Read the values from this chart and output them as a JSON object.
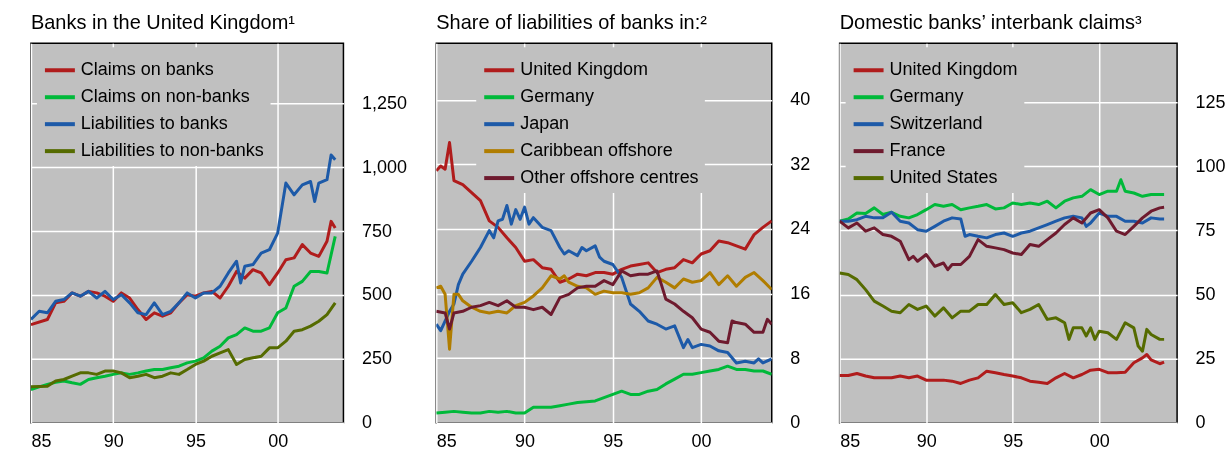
{
  "chart_data": [
    {
      "type": "line",
      "title": "Banks in the United Kingdom¹",
      "xlim": [
        1985,
        2004
      ],
      "ylim": [
        0,
        1485
      ],
      "xticks": [
        {
          "value": 1985,
          "label": "85"
        },
        {
          "value": 1990,
          "label": "90"
        },
        {
          "value": 1995,
          "label": "95"
        },
        {
          "value": 2000,
          "label": "00"
        }
      ],
      "yticks": [
        0,
        250,
        500,
        750,
        {
          "value": 1000,
          "label": "1,000"
        },
        {
          "value": 1250,
          "label": "1,250"
        }
      ],
      "grid": true,
      "legend": "top left",
      "series": [
        {
          "name": "Claims on banks",
          "color": "#b01c1c",
          "x": [
            1985,
            1986,
            1986.5,
            1987,
            1987.5,
            1988,
            1988.5,
            1989,
            1989.5,
            1990,
            1990.5,
            1991,
            1991.5,
            1992,
            1992.5,
            1993,
            1993.5,
            1994,
            1994.5,
            1995,
            1995.5,
            1996,
            1996.5,
            1997,
            1997.5,
            1998,
            1998.5,
            1999,
            1999.5,
            2000,
            2000.5,
            2001,
            2001.5,
            2002,
            2002.5,
            2003,
            2003.25,
            2003.5
          ],
          "values": [
            384,
            404,
            469,
            475,
            508,
            495,
            514,
            508,
            495,
            475,
            508,
            488,
            443,
            404,
            430,
            417,
            430,
            469,
            501,
            495,
            508,
            514,
            488,
            534,
            592,
            566,
            599,
            586,
            540,
            586,
            638,
            645,
            697,
            664,
            651,
            710,
            788,
            762
          ]
        },
        {
          "name": "Claims on non-banks",
          "color": "#00b93a",
          "x": [
            1985,
            1985.5,
            1986,
            1986.5,
            1987,
            1987.5,
            1988,
            1988.5,
            1989,
            1989.5,
            1990,
            1990.5,
            1991,
            1991.5,
            1992,
            1992.5,
            1993,
            1993.5,
            1994,
            1994.5,
            1995,
            1995.5,
            1996,
            1996.5,
            1997,
            1997.5,
            1998,
            1998.5,
            1999,
            1999.5,
            2000,
            2000.5,
            2001,
            2001.5,
            2002,
            2002.5,
            2003,
            2003.5
          ],
          "values": [
            130,
            140,
            150,
            158,
            163,
            156,
            150,
            169,
            176,
            182,
            189,
            195,
            189,
            195,
            202,
            208,
            208,
            215,
            221,
            234,
            241,
            254,
            280,
            299,
            332,
            345,
            371,
            358,
            358,
            371,
            430,
            449,
            534,
            553,
            592,
            592,
            586,
            729
          ]
        },
        {
          "name": "Liabilities to banks",
          "color": "#1d5aa8",
          "x": [
            1985,
            1985.5,
            1986,
            1986.5,
            1987,
            1987.5,
            1988,
            1988.5,
            1989,
            1989.5,
            1990,
            1990.5,
            1991,
            1991.5,
            1992,
            1992.5,
            1993,
            1993.5,
            1994,
            1994.5,
            1995,
            1995.5,
            1996,
            1996.5,
            1997,
            1997.5,
            1997.75,
            1998,
            1998.5,
            1999,
            1999.5,
            2000,
            2000.5,
            2001,
            2001.5,
            2002,
            2002.25,
            2002.5,
            2003,
            2003.25,
            2003.5
          ],
          "values": [
            404,
            436,
            430,
            475,
            482,
            508,
            495,
            514,
            488,
            514,
            482,
            501,
            469,
            430,
            423,
            469,
            423,
            436,
            469,
            508,
            488,
            508,
            508,
            534,
            586,
            632,
            547,
            612,
            619,
            664,
            677,
            742,
            938,
            892,
            931,
            944,
            866,
            938,
            951,
            1048,
            1029
          ]
        },
        {
          "name": "Liabilities to non-banks",
          "color": "#556b00",
          "x": [
            1985,
            1985.5,
            1986,
            1986.5,
            1987,
            1987.5,
            1988,
            1988.5,
            1989,
            1989.5,
            1990,
            1990.5,
            1991,
            1991.5,
            1992,
            1992.5,
            1993,
            1993.5,
            1994,
            1994.5,
            1995,
            1995.5,
            1996,
            1996.5,
            1997,
            1997.5,
            1998,
            1998.5,
            1999,
            1999.5,
            2000,
            2000.5,
            2001,
            2001.5,
            2002,
            2002.5,
            2003,
            2003.5
          ],
          "values": [
            141,
            142,
            143,
            163,
            169,
            182,
            195,
            195,
            189,
            202,
            202,
            195,
            176,
            182,
            189,
            176,
            182,
            195,
            189,
            208,
            228,
            241,
            260,
            273,
            286,
            228,
            247,
            254,
            260,
            293,
            293,
            319,
            358,
            364,
            378,
            397,
            423,
            469
          ]
        }
      ]
    },
    {
      "type": "line",
      "title": "Share of liabilities of banks in:²",
      "xlim": [
        1985,
        2004
      ],
      "ylim": [
        0,
        47
      ],
      "xticks": [
        {
          "value": 1985,
          "label": "85"
        },
        {
          "value": 1990,
          "label": "90"
        },
        {
          "value": 1995,
          "label": "95"
        },
        {
          "value": 2000,
          "label": "00"
        }
      ],
      "yticks": [
        0,
        8,
        16,
        24,
        32,
        40
      ],
      "grid": true,
      "legend": "top left",
      "series": [
        {
          "name": "United Kingdom",
          "color": "#b01c1c",
          "x": [
            1985,
            1985.25,
            1985.5,
            1985.75,
            1986,
            1986.5,
            1987,
            1987.5,
            1988,
            1988.5,
            1989,
            1989.5,
            1990,
            1990.5,
            1991,
            1991.5,
            1992,
            1992.5,
            1993,
            1993.5,
            1994,
            1994.5,
            1995,
            1995.5,
            1996,
            1996.5,
            1997,
            1997.5,
            1998,
            1998.5,
            1999,
            1999.5,
            2000,
            2000.5,
            2001,
            2001.5,
            2002,
            2002.5,
            2003,
            2003.5,
            2004
          ],
          "values": [
            31.2,
            31.8,
            31.4,
            34.7,
            30.0,
            29.5,
            28.5,
            27.5,
            25.0,
            24.2,
            22.9,
            21.7,
            20.0,
            20.2,
            19.2,
            19.0,
            17.4,
            17.8,
            18.4,
            18.2,
            18.6,
            18.6,
            18.4,
            19.0,
            19.4,
            19.6,
            19.8,
            18.6,
            19.0,
            19.2,
            20.2,
            19.8,
            20.9,
            21.3,
            22.5,
            22.3,
            21.9,
            21.5,
            23.3,
            24.2,
            25.0
          ]
        },
        {
          "name": "Germany",
          "color": "#00b93a",
          "x": [
            1985,
            1985.5,
            1986,
            1986.5,
            1987,
            1987.5,
            1988,
            1988.5,
            1989,
            1989.5,
            1990,
            1990.5,
            1991,
            1991.5,
            1992,
            1992.5,
            1993,
            1993.5,
            1994,
            1994.5,
            1995,
            1995.5,
            1996,
            1996.5,
            1997,
            1997.5,
            1998,
            1998.5,
            1999,
            1999.5,
            2000,
            2000.5,
            2001,
            2001.5,
            2002,
            2002.5,
            2003,
            2003.5,
            2004
          ],
          "values": [
            1.2,
            1.3,
            1.4,
            1.3,
            1.2,
            1.2,
            1.4,
            1.3,
            1.4,
            1.2,
            1.2,
            1.9,
            1.9,
            1.9,
            2.1,
            2.3,
            2.5,
            2.6,
            2.7,
            3.1,
            3.5,
            3.9,
            3.5,
            3.5,
            3.9,
            4.1,
            4.8,
            5.4,
            6.0,
            6.0,
            6.2,
            6.4,
            6.6,
            7.0,
            6.6,
            6.6,
            6.4,
            6.4,
            6.0
          ]
        },
        {
          "name": "Japan",
          "color": "#1d5aa8",
          "x": [
            1985,
            1985.25,
            1985.75,
            1986,
            1986.25,
            1986.5,
            1987,
            1987.5,
            1988,
            1988.25,
            1988.5,
            1988.75,
            1989,
            1989.25,
            1989.5,
            1989.75,
            1990,
            1990.25,
            1990.5,
            1991,
            1991.5,
            1992,
            1992.25,
            1992.5,
            1993,
            1993.25,
            1993.5,
            1994,
            1994.25,
            1994.5,
            1995,
            1995.5,
            1996,
            1996.5,
            1997,
            1997.5,
            1998,
            1998.5,
            1999,
            1999.25,
            1999.5,
            2000,
            2000.5,
            2001,
            2001.5,
            2002,
            2002.5,
            2003,
            2003.25,
            2003.5,
            2004
          ],
          "values": [
            12.2,
            11.4,
            13.8,
            14.7,
            17.1,
            18.4,
            20.0,
            21.7,
            23.8,
            22.9,
            25.0,
            25.2,
            26.9,
            24.6,
            26.4,
            25.2,
            26.7,
            24.6,
            25.4,
            24.2,
            23.8,
            21.7,
            20.9,
            21.3,
            20.7,
            21.7,
            21.3,
            21.9,
            20.5,
            20.0,
            19.6,
            18.0,
            14.7,
            13.8,
            12.6,
            12.2,
            11.6,
            12.0,
            9.3,
            10.3,
            9.3,
            9.7,
            9.5,
            8.9,
            8.7,
            7.4,
            7.6,
            7.4,
            7.9,
            7.4,
            7.9
          ]
        },
        {
          "name": "Caribbean offshore",
          "color": "#b07d00",
          "x": [
            1985,
            1985.25,
            1985.5,
            1985.75,
            1986,
            1986.25,
            1986.5,
            1987,
            1987.5,
            1988,
            1988.5,
            1989,
            1989.5,
            1990,
            1990.5,
            1991,
            1991.5,
            1992,
            1992.25,
            1992.5,
            1993,
            1993.5,
            1994,
            1994.5,
            1995,
            1995.5,
            1996,
            1996.5,
            1997,
            1997.5,
            1998,
            1998.5,
            1999,
            1999.5,
            2000,
            2000.5,
            2001,
            2001.5,
            2002,
            2002.5,
            2003,
            2003.5,
            2004
          ],
          "values": [
            16.7,
            16.9,
            15.9,
            9.1,
            15.9,
            15.9,
            15.1,
            14.3,
            13.8,
            13.6,
            13.8,
            13.6,
            14.5,
            14.9,
            15.7,
            16.7,
            18.2,
            17.8,
            18.2,
            17.4,
            16.9,
            16.7,
            15.9,
            16.3,
            16.1,
            16.1,
            15.9,
            16.1,
            16.7,
            18.0,
            17.4,
            16.7,
            17.8,
            17.4,
            17.6,
            18.6,
            17.1,
            18.2,
            16.9,
            18.0,
            18.6,
            17.6,
            16.5
          ]
        },
        {
          "name": "Other offshore centres",
          "color": "#6e1a2e",
          "x": [
            1985,
            1985.5,
            1985.75,
            1986,
            1986.5,
            1987,
            1987.5,
            1988,
            1988.5,
            1989,
            1989.5,
            1990,
            1990.5,
            1991,
            1991.5,
            1992,
            1992.5,
            1993,
            1993.5,
            1994,
            1994.5,
            1995,
            1995.5,
            1996,
            1996.5,
            1997,
            1997.5,
            1997.75,
            1998,
            1998.5,
            1999,
            1999.5,
            2000,
            2000.5,
            2001,
            2001.5,
            2001.75,
            2002,
            2002.5,
            2003,
            2003.5,
            2003.75,
            2004
          ],
          "values": [
            13.8,
            13.6,
            11.6,
            13.6,
            13.8,
            14.3,
            14.5,
            14.9,
            14.5,
            15.1,
            14.3,
            14.3,
            14.0,
            14.3,
            13.4,
            15.5,
            15.9,
            16.7,
            16.9,
            16.9,
            17.6,
            17.1,
            18.8,
            18.2,
            18.4,
            18.4,
            18.8,
            17.1,
            15.3,
            14.7,
            13.8,
            13.0,
            11.6,
            11.2,
            10.1,
            9.9,
            12.6,
            12.4,
            12.2,
            11.2,
            11.2,
            12.8,
            12.2
          ]
        }
      ]
    },
    {
      "type": "line",
      "title": "Domestic banks’ interbank claims³",
      "xlim": [
        1985,
        2004.5
      ],
      "ylim": [
        0,
        148
      ],
      "xticks": [
        {
          "value": 1985,
          "label": "85"
        },
        {
          "value": 1990,
          "label": "90"
        },
        {
          "value": 1995,
          "label": "95"
        },
        {
          "value": 2000,
          "label": "00"
        }
      ],
      "yticks": [
        0,
        25,
        50,
        75,
        100,
        125
      ],
      "grid": true,
      "legend": "top left",
      "series": [
        {
          "name": "United Kingdom",
          "color": "#b01c1c",
          "x": [
            1985,
            1985.5,
            1986,
            1986.5,
            1987,
            1987.5,
            1988,
            1988.5,
            1989,
            1989.5,
            1990,
            1990.5,
            1991,
            1991.5,
            1992,
            1992.5,
            1993,
            1993.5,
            1994,
            1994.5,
            1995,
            1995.5,
            1996,
            1996.5,
            1997,
            1997.5,
            1998,
            1998.5,
            1999,
            1999.5,
            2000,
            2000.5,
            2001,
            2001.5,
            2002,
            2002.5,
            2002.75,
            2003,
            2003.5,
            2003.75
          ],
          "values": [
            18.4,
            18.4,
            19.2,
            18.2,
            17.5,
            17.5,
            17.5,
            18.2,
            17.5,
            18.2,
            16.6,
            16.6,
            16.6,
            16.2,
            15.3,
            16.6,
            17.5,
            20.1,
            19.5,
            18.8,
            18.2,
            17.5,
            16.2,
            15.8,
            15.3,
            17.5,
            19.2,
            17.5,
            18.8,
            20.5,
            20.8,
            19.5,
            19.5,
            19.7,
            23.4,
            25.3,
            26.6,
            24.5,
            23.0,
            23.6
          ]
        },
        {
          "name": "Germany",
          "color": "#00b93a",
          "x": [
            1985,
            1985.5,
            1986,
            1986.5,
            1987,
            1987.5,
            1988,
            1988.5,
            1989,
            1989.5,
            1990,
            1990.5,
            1991,
            1991.5,
            1992,
            1992.5,
            1993,
            1993.5,
            1994,
            1994.5,
            1995,
            1995.5,
            1996,
            1996.5,
            1997,
            1997.5,
            1998,
            1998.5,
            1999,
            1999.5,
            2000,
            2000.5,
            2001,
            2001.25,
            2001.5,
            2002,
            2002.5,
            2003,
            2003.5,
            2003.75
          ],
          "values": [
            78.6,
            79.5,
            81.8,
            81.6,
            83.8,
            81.2,
            82.1,
            80.5,
            79.9,
            81.2,
            83.1,
            85.1,
            84.4,
            85.1,
            83.1,
            83.8,
            84.4,
            85.1,
            83.4,
            83.8,
            85.7,
            85.1,
            85.7,
            85.1,
            86.4,
            83.8,
            86.4,
            87.7,
            88.3,
            90.9,
            89.0,
            90.3,
            90.3,
            94.8,
            90.3,
            89.6,
            88.3,
            89.0,
            89.0,
            89.0
          ]
        },
        {
          "name": "Switzerland",
          "color": "#1d5aa8",
          "x": [
            1985,
            1985.5,
            1986,
            1986.5,
            1987,
            1987.5,
            1988,
            1988.5,
            1989,
            1989.5,
            1990,
            1990.5,
            1991,
            1991.5,
            1992,
            1992.25,
            1992.5,
            1993,
            1993.5,
            1994,
            1994.5,
            1995,
            1995.5,
            1996,
            1996.5,
            1997,
            1997.5,
            1998,
            1998.5,
            1999,
            1999.25,
            1999.5,
            2000,
            2000.5,
            2001,
            2001.5,
            2002,
            2002.5,
            2003,
            2003.5,
            2003.75
          ],
          "values": [
            78.6,
            78.6,
            79.2,
            80.5,
            79.9,
            79.9,
            82.1,
            78.6,
            77.9,
            75.3,
            74.7,
            76.6,
            78.6,
            79.9,
            79.5,
            72.7,
            73.4,
            72.7,
            72.1,
            73.4,
            74.0,
            72.7,
            74.0,
            74.7,
            76.0,
            77.3,
            78.6,
            79.9,
            80.5,
            79.9,
            76.6,
            77.9,
            81.8,
            80.5,
            80.5,
            78.6,
            78.6,
            77.9,
            79.9,
            79.5,
            79.5
          ]
        },
        {
          "name": "France",
          "color": "#6e1a2e",
          "x": [
            1985,
            1985.5,
            1986,
            1986.5,
            1987,
            1987.5,
            1988,
            1988.5,
            1989,
            1989.25,
            1989.5,
            1990,
            1990.5,
            1991,
            1991.25,
            1991.5,
            1992,
            1992.5,
            1993,
            1993.5,
            1994,
            1994.5,
            1995,
            1995.5,
            1996,
            1996.5,
            1997,
            1997.5,
            1998,
            1998.5,
            1999,
            1999.5,
            2000,
            2000.5,
            2001,
            2001.5,
            2002,
            2002.5,
            2003,
            2003.5,
            2003.75
          ],
          "values": [
            78.6,
            76.0,
            77.9,
            74.7,
            76.0,
            73.4,
            72.7,
            70.8,
            63.6,
            64.9,
            63.0,
            65.6,
            61.0,
            62.3,
            59.7,
            61.7,
            61.7,
            64.9,
            71.4,
            68.8,
            68.2,
            67.5,
            66.2,
            65.6,
            69.5,
            68.8,
            71.4,
            74.0,
            77.3,
            79.9,
            77.9,
            81.8,
            83.1,
            79.9,
            74.7,
            73.4,
            76.6,
            79.9,
            82.5,
            83.8,
            84.0
          ]
        },
        {
          "name": "United States",
          "color": "#556b00",
          "x": [
            1985,
            1985.5,
            1986,
            1986.5,
            1987,
            1987.5,
            1988,
            1988.5,
            1989,
            1989.5,
            1990,
            1990.5,
            1991,
            1991.5,
            1992,
            1992.5,
            1993,
            1993.5,
            1994,
            1994.5,
            1995,
            1995.5,
            1996,
            1996.5,
            1997,
            1997.5,
            1998,
            1998.25,
            1998.5,
            1999,
            1999.25,
            1999.5,
            1999.75,
            2000,
            2000.5,
            2001,
            2001.5,
            2002,
            2002.25,
            2002.5,
            2002.75,
            2003,
            2003.5,
            2003.75
          ],
          "values": [
            58.4,
            57.8,
            55.8,
            51.9,
            47.4,
            45.5,
            43.5,
            42.9,
            46.1,
            44.2,
            45.5,
            41.6,
            44.8,
            40.9,
            43.5,
            43.5,
            46.1,
            46.1,
            50.0,
            46.1,
            46.8,
            42.9,
            44.2,
            46.1,
            40.3,
            40.9,
            39.0,
            32.5,
            37.0,
            37.0,
            33.8,
            37.0,
            32.5,
            35.7,
            35.1,
            32.5,
            39.0,
            37.0,
            29.9,
            27.9,
            36.4,
            34.4,
            32.5,
            32.5
          ]
        }
      ]
    }
  ]
}
